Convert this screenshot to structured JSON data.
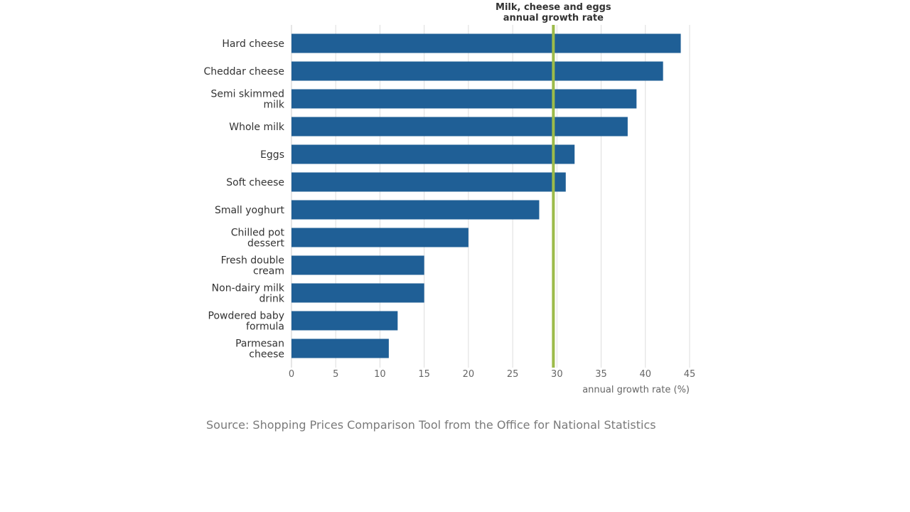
{
  "chart_data": {
    "type": "bar",
    "orientation": "horizontal",
    "categories": [
      [
        "Hard cheese"
      ],
      [
        "Cheddar cheese"
      ],
      [
        "Semi skimmed",
        "milk"
      ],
      [
        "Whole milk"
      ],
      [
        "Eggs"
      ],
      [
        "Soft cheese"
      ],
      [
        "Small yoghurt"
      ],
      [
        "Chilled pot",
        "dessert"
      ],
      [
        "Fresh double",
        "cream"
      ],
      [
        "Non-dairy milk",
        "drink"
      ],
      [
        "Powdered baby",
        "formula"
      ],
      [
        "Parmesan",
        "cheese"
      ]
    ],
    "values": [
      44,
      42,
      39,
      38,
      32,
      31,
      28,
      20,
      15,
      15,
      12,
      11
    ],
    "xlabel": "annual growth rate (%)",
    "xlim": [
      0,
      45
    ],
    "xticks": [
      0,
      5,
      10,
      15,
      20,
      25,
      30,
      35,
      40,
      45
    ],
    "grid": true,
    "reference_line": {
      "value": 29.6,
      "label": [
        "Milk, cheese and eggs",
        "annual growth rate"
      ]
    }
  },
  "colors": {
    "bar": "#1f5f96",
    "reference_line": "#9cbb4a",
    "grid": "#dddddd",
    "axis_text": "#666666",
    "category_text": "#333333",
    "source_text": "#7a7a7a"
  },
  "source": "Source: Shopping Prices Comparison Tool from the Office for National Statistics"
}
